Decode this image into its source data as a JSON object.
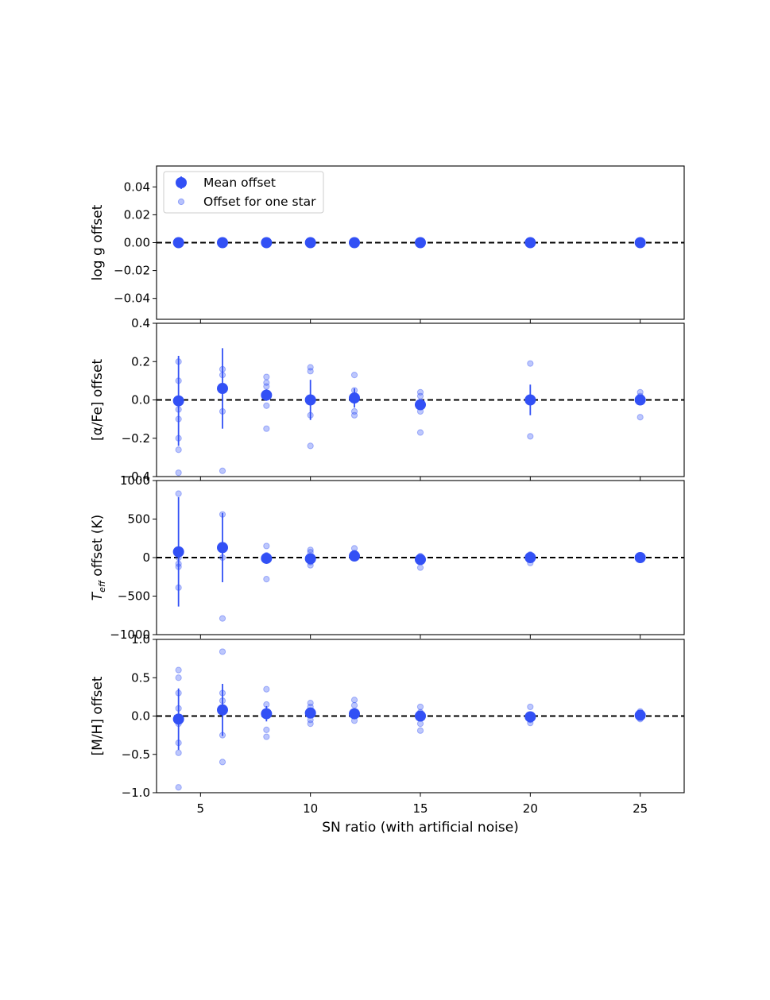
{
  "chart_data": {
    "type": "scatter",
    "xlabel": "SN ratio (with artificial noise)",
    "xlim": [
      3,
      27
    ],
    "x_ticks": [
      "5",
      "10",
      "15",
      "20",
      "25"
    ],
    "x": [
      4,
      6,
      8,
      10,
      12,
      15,
      20,
      25
    ],
    "colors": {
      "marker": "#3250f5",
      "line": "#000000"
    },
    "legend": {
      "placement": "upper-left",
      "entries": [
        "Mean offset",
        "Offset for one star"
      ]
    },
    "panels": [
      {
        "ylabel": "log g offset",
        "ylim": [
          -0.055,
          0.055
        ],
        "y_ticks": [
          "0.04",
          "0.02",
          "0.00",
          "−0.02",
          "−0.04"
        ],
        "y_tick_values": [
          0.04,
          0.02,
          0.0,
          -0.02,
          -0.04
        ],
        "mean": [
          0,
          0,
          0,
          0,
          0,
          0,
          0,
          0
        ],
        "err": [
          0,
          0,
          0,
          0,
          0,
          0,
          0,
          0
        ],
        "stars": [
          [
            0
          ],
          [
            0
          ],
          [
            0
          ],
          [
            0
          ],
          [
            0
          ],
          [
            0
          ],
          [
            0
          ],
          [
            0
          ]
        ]
      },
      {
        "ylabel": "[α/Fe] offset",
        "ylim": [
          -0.4,
          0.4
        ],
        "y_ticks": [
          "0.4",
          "0.2",
          "0.0",
          "−0.2",
          "−0.4"
        ],
        "y_tick_values": [
          0.4,
          0.2,
          0.0,
          -0.2,
          -0.4
        ],
        "mean": [
          -0.005,
          0.06,
          0.025,
          0.0,
          0.01,
          -0.025,
          0.0,
          0.0
        ],
        "err": [
          0.235,
          0.21,
          0.03,
          0.105,
          0.05,
          0.025,
          0.08,
          0.02
        ],
        "stars": [
          [
            0.2,
            0.1,
            0.0,
            -0.05,
            -0.1,
            -0.2,
            -0.26,
            -0.38
          ],
          [
            0.16,
            0.13,
            0.05,
            -0.06,
            -0.37
          ],
          [
            0.12,
            0.09,
            0.07,
            0.03,
            -0.03,
            -0.15
          ],
          [
            0.17,
            0.15,
            0.0,
            -0.08,
            -0.24
          ],
          [
            0.13,
            0.05,
            0.0,
            -0.06,
            -0.08
          ],
          [
            0.04,
            0.02,
            -0.06,
            -0.17
          ],
          [
            0.19,
            0.0,
            -0.19
          ],
          [
            0.04,
            0.02,
            -0.09
          ]
        ]
      },
      {
        "ylabel": "offset (K)",
        "ylabel_prefix": "T",
        "ylabel_sub": "eff",
        "ylim": [
          -1000,
          1000
        ],
        "y_ticks": [
          "1000",
          "500",
          "0",
          "−500",
          "−1000"
        ],
        "y_tick_values": [
          1000,
          500,
          0,
          -500,
          -1000
        ],
        "mean": [
          75,
          130,
          -10,
          -15,
          20,
          -25,
          0,
          0
        ],
        "err": [
          710,
          450,
          35,
          40,
          30,
          20,
          35,
          10
        ],
        "stars": [
          [
            830,
            0,
            -80,
            -120,
            -390
          ],
          [
            560,
            0,
            -790
          ],
          [
            150,
            30,
            -30,
            -280
          ],
          [
            100,
            70,
            -60,
            -100
          ],
          [
            120,
            60,
            0
          ],
          [
            20,
            -130
          ],
          [
            40,
            -70
          ],
          [
            10,
            -10
          ]
        ]
      },
      {
        "ylabel": "[M/H] offset",
        "ylim": [
          -1.0,
          1.0
        ],
        "y_ticks": [
          "1.0",
          "0.5",
          "0.0",
          "−0.5",
          "−1.0"
        ],
        "y_tick_values": [
          1.0,
          0.5,
          0.0,
          -0.5,
          -1.0
        ],
        "mean": [
          -0.04,
          0.08,
          0.03,
          0.04,
          0.03,
          0.0,
          -0.01,
          0.01
        ],
        "err": [
          0.4,
          0.34,
          0.1,
          0.05,
          0.06,
          0.04,
          0.04,
          0.03
        ],
        "stars": [
          [
            0.6,
            0.5,
            0.3,
            0.1,
            -0.1,
            -0.35,
            -0.48,
            -0.93
          ],
          [
            0.84,
            0.3,
            0.2,
            -0.25,
            -0.6
          ],
          [
            0.35,
            0.15,
            0.05,
            -0.18,
            -0.27
          ],
          [
            0.17,
            0.12,
            0.05,
            -0.05,
            -0.1
          ],
          [
            0.21,
            0.14,
            0.05,
            -0.06
          ],
          [
            0.12,
            0.05,
            -0.1,
            -0.19
          ],
          [
            0.12,
            -0.05,
            -0.09
          ],
          [
            0.06,
            0.03,
            -0.04
          ]
        ]
      }
    ]
  }
}
